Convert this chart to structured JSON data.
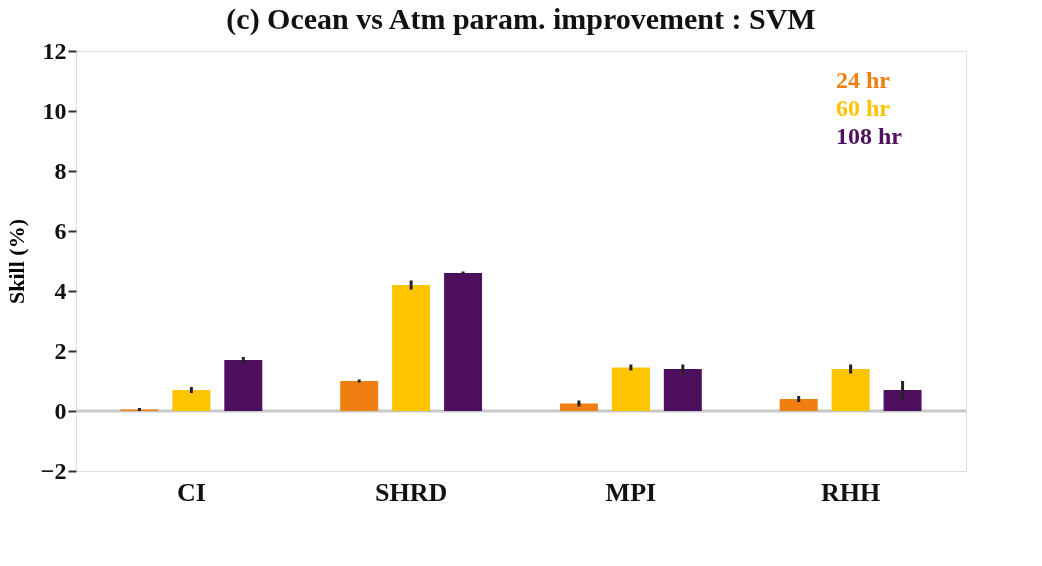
{
  "chart_data": {
    "type": "bar",
    "title": "(c) Ocean vs Atm param. improvement : SVM",
    "ylabel": "Skill (%)",
    "categories": [
      "CI",
      "SHRD",
      "MPI",
      "RHH"
    ],
    "series": [
      {
        "name": "24 hr",
        "color": "#f07f12",
        "values": [
          0.05,
          1.0,
          0.25,
          0.4
        ],
        "errors": [
          0.05,
          0.05,
          0.1,
          0.1
        ]
      },
      {
        "name": "60 hr",
        "color": "#fcc500",
        "values": [
          0.7,
          4.2,
          1.45,
          1.4
        ],
        "errors": [
          0.1,
          0.15,
          0.1,
          0.15
        ]
      },
      {
        "name": "108 hr",
        "color": "#4f0f5f",
        "values": [
          1.7,
          4.6,
          1.4,
          0.7
        ],
        "errors": [
          0.1,
          0.05,
          0.15,
          0.3
        ]
      }
    ],
    "ylim": [
      -2,
      12
    ],
    "yticks": [
      -2,
      0,
      2,
      4,
      6,
      8,
      10,
      12
    ],
    "ref_lines": [
      {
        "axis": "y",
        "value": 0,
        "color": "#c8c8c8"
      }
    ],
    "legend": "top right",
    "grid": false
  }
}
